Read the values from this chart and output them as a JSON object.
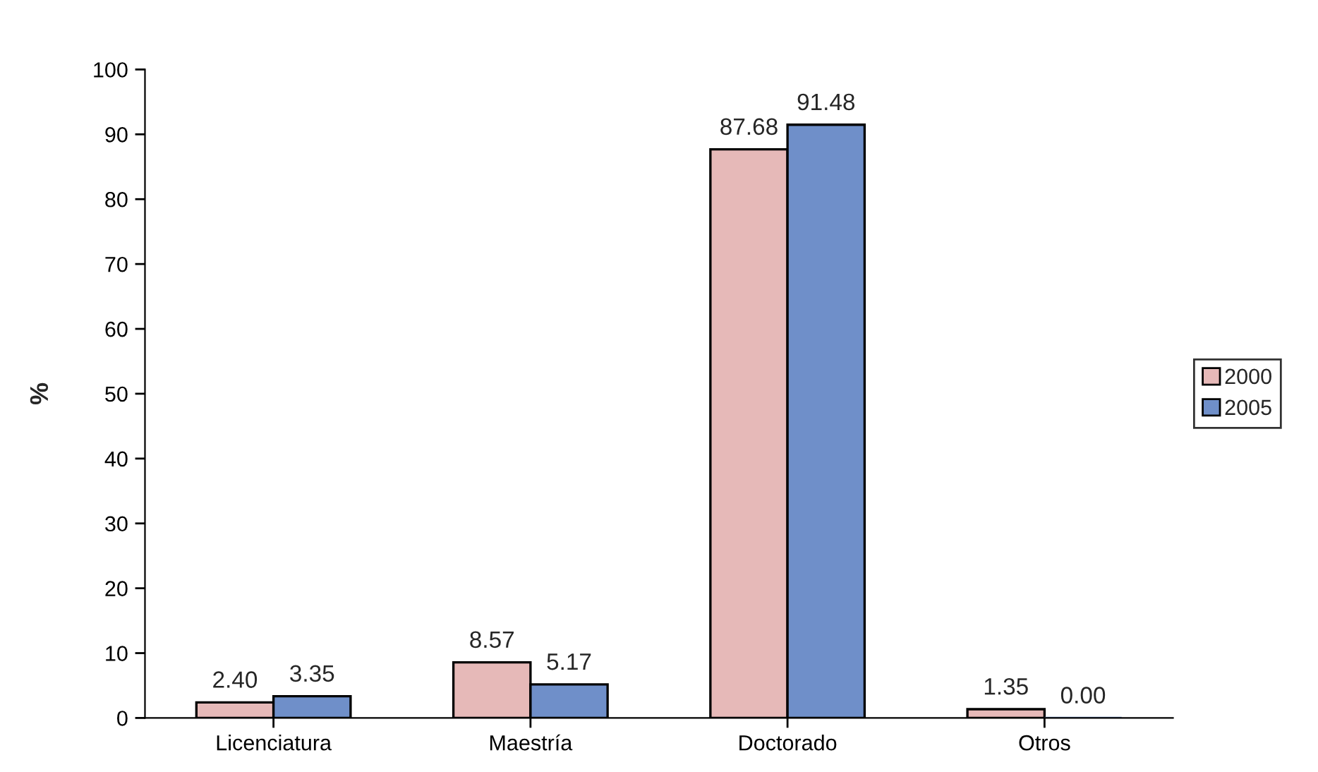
{
  "chart_data": {
    "type": "bar",
    "ylabel": "%",
    "categories": [
      "Licenciatura",
      "Maestría",
      "Doctorado",
      "Otros"
    ],
    "series": [
      {
        "name": "2000",
        "color": "#e6b9b8",
        "values": [
          2.4,
          8.57,
          87.68,
          1.35
        ],
        "value_labels": [
          "2.40",
          "8.57",
          "87.68",
          "1.35"
        ]
      },
      {
        "name": "2005",
        "color": "#6f8fc9",
        "values": [
          3.35,
          5.17,
          91.48,
          0.0
        ],
        "value_labels": [
          "3.35",
          "5.17",
          "91.48",
          "0.00"
        ]
      }
    ],
    "ylim": [
      0,
      100
    ],
    "yticks": [
      0,
      10,
      20,
      30,
      40,
      50,
      60,
      70,
      80,
      90,
      100
    ],
    "grid": false,
    "legend": "right"
  }
}
